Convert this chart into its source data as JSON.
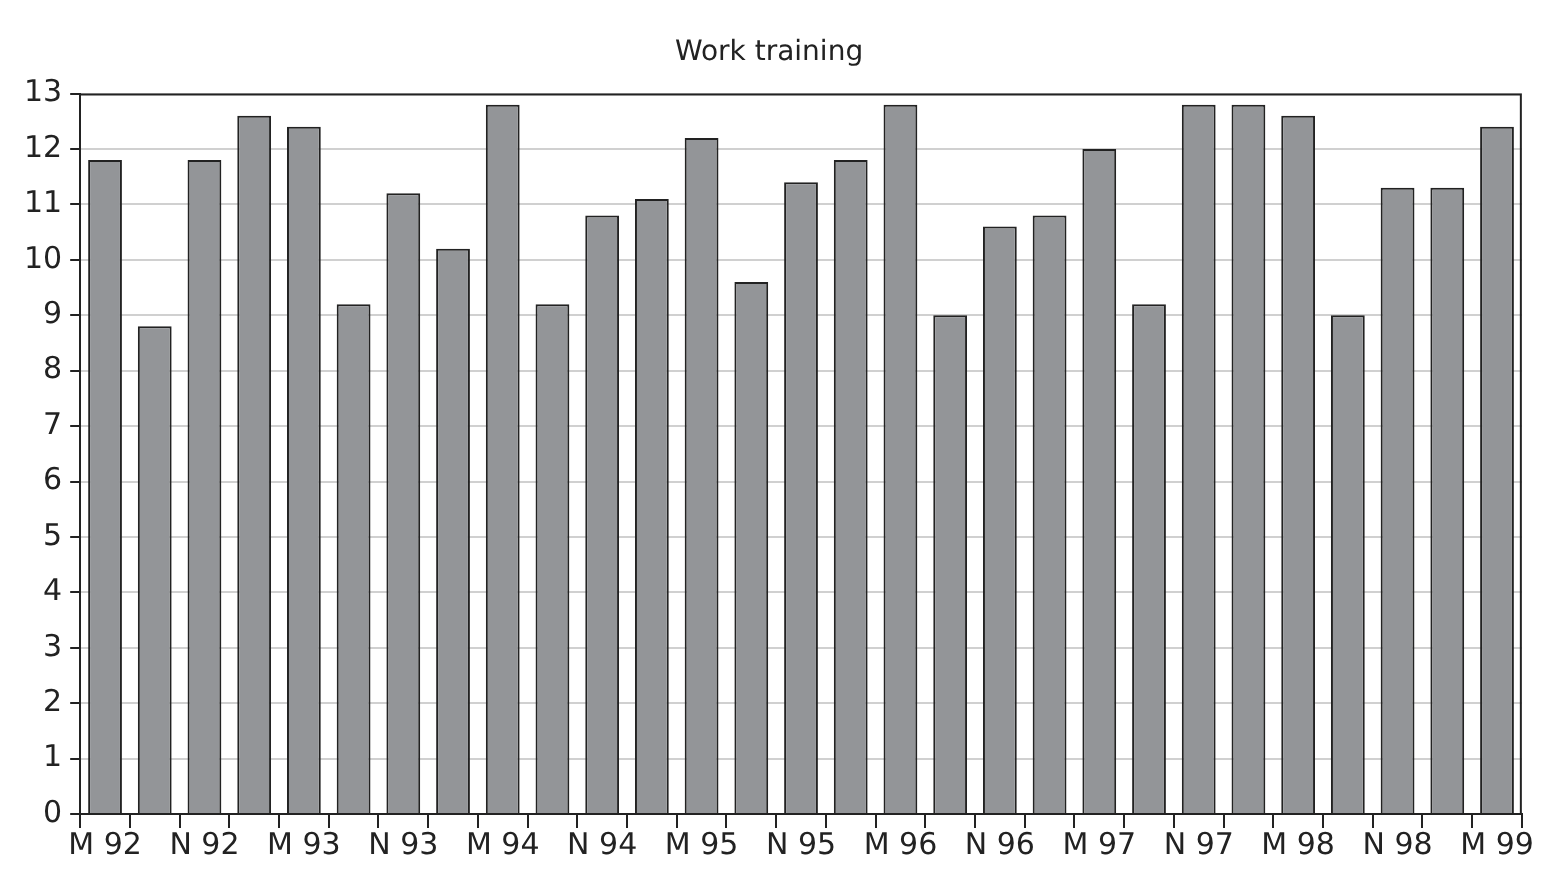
{
  "chart_data": {
    "type": "bar",
    "title": "Work training",
    "categories": [
      "M 92",
      null,
      "N 92",
      null,
      "M 93",
      null,
      "N 93",
      null,
      "M 94",
      null,
      "N 94",
      null,
      "M 95",
      null,
      "N 95",
      null,
      "M 96",
      null,
      "N 96",
      null,
      "M 97",
      null,
      "N 97",
      null,
      "M 98",
      null,
      "N 98",
      null,
      "M 99"
    ],
    "values": [
      11.8,
      8.8,
      11.8,
      12.6,
      12.4,
      9.2,
      11.2,
      10.2,
      12.8,
      9.2,
      10.8,
      11.1,
      12.2,
      9.6,
      11.4,
      11.8,
      12.8,
      9.0,
      10.6,
      10.8,
      12.0,
      9.2,
      12.8,
      12.8,
      12.6,
      9.0,
      11.3,
      11.3,
      12.4
    ],
    "color": "#939598",
    "ylim": [
      0,
      13
    ],
    "yticks": [
      0,
      1,
      2,
      3,
      4,
      5,
      6,
      7,
      8,
      9,
      10,
      11,
      12,
      13
    ],
    "grid": "y"
  }
}
